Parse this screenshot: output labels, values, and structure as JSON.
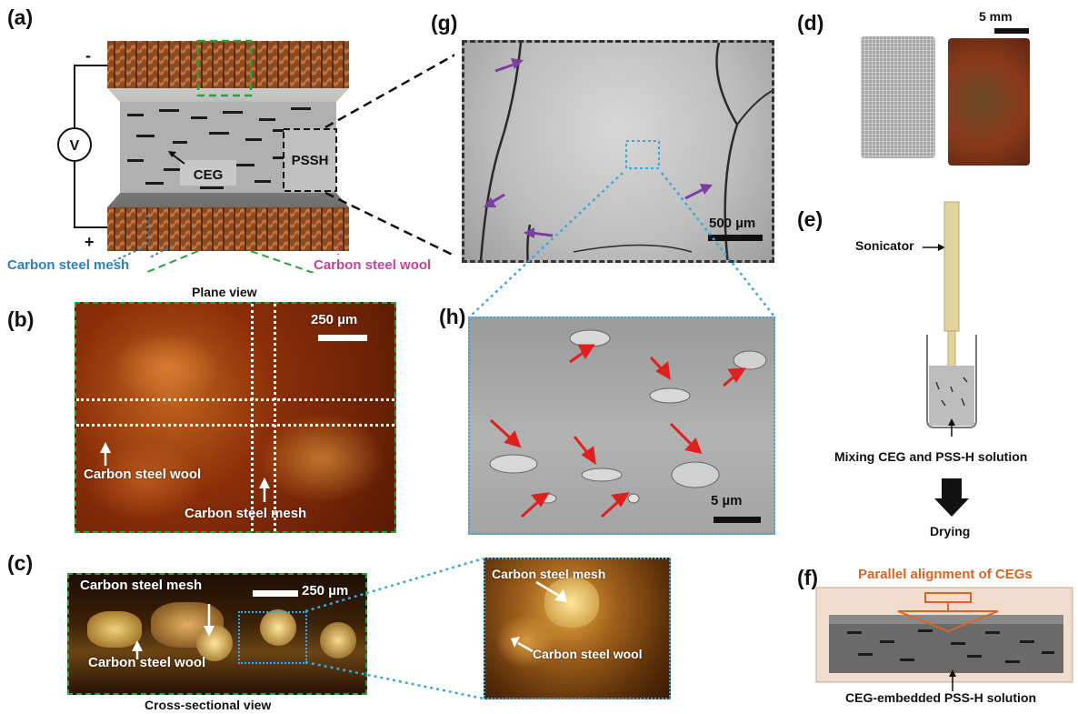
{
  "panels": {
    "a": {
      "letter": "(a)",
      "minus": "-",
      "plus": "+",
      "voltmeter": "V",
      "ceg": "CEG",
      "pssh": "PSSH",
      "mesh_label": "Carbon steel mesh",
      "wool_label": "Carbon steel wool"
    },
    "b": {
      "letter": "(b)",
      "title": "Plane view",
      "scale": "250 µm",
      "wool_label": "Carbon steel wool",
      "mesh_label": "Carbon steel mesh"
    },
    "c": {
      "letter": "(c)",
      "caption": "Cross-sectional view",
      "scale": "250 µm",
      "mesh_label": "Carbon steel mesh",
      "wool_label": "Carbon steel wool",
      "zoom_mesh_label": "Carbon steel mesh",
      "zoom_wool_label": "Carbon steel wool"
    },
    "d": {
      "letter": "(d)",
      "scale": "5 mm"
    },
    "e": {
      "letter": "(e)",
      "sonicator": "Sonicator",
      "mixing": "Mixing CEG and PSS-H solution",
      "drying": "Drying"
    },
    "f": {
      "letter": "(f)",
      "title": "Parallel alignment of CEGs",
      "caption": "CEG-embedded  PSS-H solution"
    },
    "g": {
      "letter": "(g)",
      "scale": "500 µm"
    },
    "h": {
      "letter": "(h)",
      "scale": "5 µm"
    }
  },
  "colors": {
    "green_dash": "#2aa23c",
    "blue_dot": "#3aa8e0",
    "mesh_text": "#2a7fc4",
    "wool_text": "#c2449a",
    "purple_arrow": "#7a3fa0",
    "red_arrow": "#e0201c",
    "orange": "#d9661f"
  }
}
